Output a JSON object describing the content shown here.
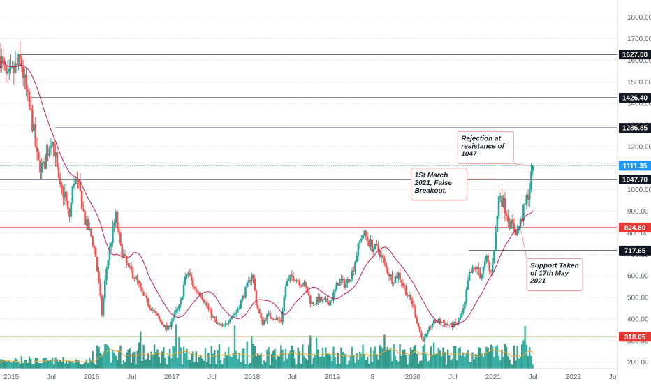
{
  "colors": {
    "up": "#26a69a",
    "down": "#ef5350",
    "ma": "#c2185b",
    "volume_ma": "#f5a623",
    "resistance_line": "#131722",
    "support_line": "#e53935",
    "current_badge": "#2196f3",
    "annotation_border": "#f29a9a"
  },
  "chart_data": {
    "type": "candlestick",
    "y_axis": {
      "range": [
        170,
        1880
      ],
      "ticks": [
        "1800.00",
        "1700.00",
        "1600.00",
        "1500.00",
        "1400.00",
        "1300.00",
        "1200.00",
        "1100.00",
        "1000.00",
        "900.00",
        "800.00",
        "700.00",
        "600.00",
        "500.00",
        "400.00",
        "300.00",
        "200.00"
      ],
      "tick_values": [
        1800,
        1700,
        1600,
        1500,
        1400,
        1300,
        1200,
        1100,
        1000,
        900,
        800,
        700,
        600,
        500,
        400,
        300,
        200
      ]
    },
    "x_axis": {
      "ticks": [
        "2015",
        "Jul",
        "2016",
        "Jul",
        "2017",
        "Jul",
        "2018",
        "Jul",
        "2019",
        "8",
        "2020",
        "Jul",
        "2021",
        "Jul",
        "2022",
        "Jul"
      ],
      "tick_dates": [
        2015.0,
        2015.5,
        2016.0,
        2016.5,
        2017.0,
        2017.5,
        2018.0,
        2018.5,
        2019.0,
        2019.5,
        2020.0,
        2020.5,
        2021.0,
        2021.5,
        2022.0,
        2022.5
      ],
      "range": [
        2014.86,
        2022.55
      ]
    },
    "price_path": [
      [
        2014.86,
        1620
      ],
      [
        2014.95,
        1500
      ],
      [
        2015.05,
        1560
      ],
      [
        2015.12,
        1600
      ],
      [
        2015.2,
        1420
      ],
      [
        2015.27,
        1300
      ],
      [
        2015.33,
        1120
      ],
      [
        2015.4,
        1100
      ],
      [
        2015.5,
        1250
      ],
      [
        2015.55,
        1150
      ],
      [
        2015.6,
        1000
      ],
      [
        2015.67,
        980
      ],
      [
        2015.72,
        860
      ],
      [
        2015.78,
        1050
      ],
      [
        2015.85,
        1000
      ],
      [
        2015.92,
        850
      ],
      [
        2016.0,
        780
      ],
      [
        2016.05,
        700
      ],
      [
        2016.1,
        530
      ],
      [
        2016.13,
        420
      ],
      [
        2016.18,
        620
      ],
      [
        2016.25,
        780
      ],
      [
        2016.3,
        880
      ],
      [
        2016.36,
        730
      ],
      [
        2016.45,
        640
      ],
      [
        2016.55,
        590
      ],
      [
        2016.65,
        500
      ],
      [
        2016.75,
        450
      ],
      [
        2016.85,
        390
      ],
      [
        2016.95,
        350
      ],
      [
        2017.0,
        400
      ],
      [
        2017.1,
        460
      ],
      [
        2017.15,
        560
      ],
      [
        2017.2,
        620
      ],
      [
        2017.28,
        540
      ],
      [
        2017.36,
        520
      ],
      [
        2017.45,
        450
      ],
      [
        2017.55,
        380
      ],
      [
        2017.65,
        360
      ],
      [
        2017.72,
        410
      ],
      [
        2017.8,
        430
      ],
      [
        2017.88,
        500
      ],
      [
        2017.95,
        560
      ],
      [
        2018.0,
        620
      ],
      [
        2018.05,
        480
      ],
      [
        2018.12,
        380
      ],
      [
        2018.2,
        420
      ],
      [
        2018.3,
        400
      ],
      [
        2018.36,
        390
      ],
      [
        2018.42,
        560
      ],
      [
        2018.5,
        600
      ],
      [
        2018.58,
        580
      ],
      [
        2018.66,
        550
      ],
      [
        2018.74,
        470
      ],
      [
        2018.82,
        490
      ],
      [
        2018.9,
        480
      ],
      [
        2018.97,
        480
      ],
      [
        2019.02,
        520
      ],
      [
        2019.08,
        580
      ],
      [
        2019.16,
        560
      ],
      [
        2019.25,
        620
      ],
      [
        2019.3,
        700
      ],
      [
        2019.37,
        800
      ],
      [
        2019.42,
        780
      ],
      [
        2019.5,
        730
      ],
      [
        2019.58,
        720
      ],
      [
        2019.66,
        640
      ],
      [
        2019.75,
        580
      ],
      [
        2019.82,
        610
      ],
      [
        2019.88,
        560
      ],
      [
        2019.95,
        500
      ],
      [
        2020.0,
        470
      ],
      [
        2020.06,
        380
      ],
      [
        2020.12,
        300
      ],
      [
        2020.18,
        330
      ],
      [
        2020.24,
        380
      ],
      [
        2020.32,
        390
      ],
      [
        2020.4,
        380
      ],
      [
        2020.48,
        370
      ],
      [
        2020.56,
        380
      ],
      [
        2020.64,
        450
      ],
      [
        2020.7,
        600
      ],
      [
        2020.78,
        640
      ],
      [
        2020.85,
        600
      ],
      [
        2020.92,
        680
      ],
      [
        2020.97,
        600
      ],
      [
        2021.03,
        780
      ],
      [
        2021.08,
        1000
      ],
      [
        2021.12,
        940
      ],
      [
        2021.16,
        910
      ],
      [
        2021.2,
        850
      ],
      [
        2021.26,
        820
      ],
      [
        2021.3,
        800
      ],
      [
        2021.35,
        860
      ],
      [
        2021.4,
        930
      ],
      [
        2021.45,
        1000
      ],
      [
        2021.5,
        1111.35
      ]
    ],
    "horizontal_levels": [
      {
        "value": 1627.0,
        "label": "1627.00",
        "kind": "resistance",
        "start": 2015.12
      },
      {
        "value": 1426.4,
        "label": "1426.40",
        "kind": "resistance",
        "start": 2015.25
      },
      {
        "value": 1286.85,
        "label": "1286.85",
        "kind": "resistance",
        "start": 2015.55
      },
      {
        "value": 1047.7,
        "label": "1047.70",
        "kind": "resistance",
        "start": 2014.86
      },
      {
        "value": 824.8,
        "label": "824.80",
        "kind": "support",
        "start": 2014.86
      },
      {
        "value": 717.65,
        "label": "717.65",
        "kind": "resistance",
        "start": 2020.7
      },
      {
        "value": 318.05,
        "label": "318.05",
        "kind": "support",
        "start": 2014.86
      }
    ],
    "current_price": {
      "value": 1111.35,
      "label": "1111.35"
    },
    "annotations": [
      {
        "lines": [
          "Rejection at",
          "resistance of",
          "1047"
        ],
        "anchor_date": 2021.47,
        "anchor_price": 1110,
        "box_date": 2020.56,
        "box_price": 1270
      },
      {
        "lines": [
          "1St March",
          "2021, False",
          "Breakout."
        ],
        "anchor_date": 2021.06,
        "anchor_price": 1050,
        "box_date": 2019.98,
        "box_price": 1100
      },
      {
        "lines": [
          "Support Taken",
          "of 17th May",
          "2021"
        ],
        "anchor_date": 2021.35,
        "anchor_price": 810,
        "box_date": 2021.42,
        "box_price": 680
      }
    ],
    "moving_average": true,
    "volume": true,
    "grid": "horizontal-dotted"
  }
}
